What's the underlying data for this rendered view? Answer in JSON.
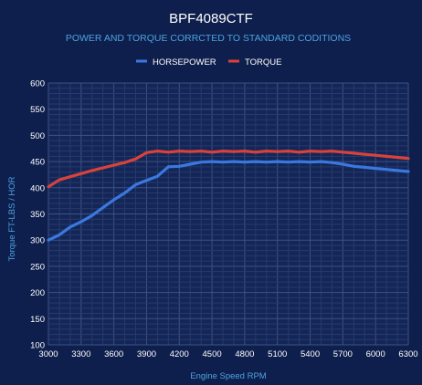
{
  "colors": {
    "background": "#0f1f4d",
    "plot_background": "#132657",
    "grid_major": "#3d5183",
    "grid_minor": "#263a6b",
    "title": "#ffffff",
    "subtitle": "#4aa3df",
    "axis_label": "#4aa3df",
    "tick_label": "#ffffff",
    "horsepower": "#3a78e0",
    "torque": "#d9423a"
  },
  "chart_data": {
    "type": "line",
    "title": "BPF4089CTF",
    "subtitle": "POWER AND TORQUE CORRCTED TO STANDARD CODITIONS",
    "xlabel": "Engine Speed RPM",
    "ylabel": "Torque FT-LBS / HOR",
    "legend_position": "top-center",
    "grid": true,
    "xlim": [
      3000,
      6300
    ],
    "ylim": [
      100,
      600
    ],
    "x_ticks": [
      3000,
      3300,
      3600,
      3900,
      4200,
      4500,
      4800,
      5100,
      5400,
      5700,
      6000,
      6300
    ],
    "y_ticks": [
      100,
      150,
      200,
      250,
      300,
      350,
      400,
      450,
      500,
      550,
      600
    ],
    "x_tick_labels": [
      "3000",
      "3300",
      "3600",
      "3900",
      "4200",
      "4500",
      "4800",
      "5100",
      "5400",
      "5700",
      "6000",
      "6300"
    ],
    "y_tick_labels": [
      "100",
      "150",
      "200",
      "250",
      "300",
      "350",
      "400",
      "450",
      "500",
      "550",
      "600"
    ],
    "series": [
      {
        "name": "HORSEPOWER",
        "color": "#3a78e0",
        "x": [
          3000,
          3100,
          3200,
          3300,
          3400,
          3500,
          3600,
          3700,
          3800,
          3900,
          4000,
          4100,
          4200,
          4300,
          4400,
          4500,
          4600,
          4700,
          4800,
          4900,
          5000,
          5100,
          5200,
          5300,
          5400,
          5500,
          5600,
          5700,
          5800,
          5900,
          6000,
          6100,
          6200,
          6300
        ],
        "y": [
          300,
          310,
          325,
          335,
          347,
          362,
          377,
          390,
          406,
          414,
          422,
          440,
          441,
          445,
          449,
          450,
          449,
          450,
          449,
          450,
          449,
          450,
          449,
          450,
          449,
          450,
          448,
          445,
          441,
          439,
          437,
          435,
          433,
          431
        ]
      },
      {
        "name": "TORQUE",
        "color": "#d9423a",
        "x": [
          3000,
          3100,
          3200,
          3300,
          3400,
          3500,
          3600,
          3700,
          3800,
          3900,
          4000,
          4100,
          4200,
          4300,
          4400,
          4500,
          4600,
          4700,
          4800,
          4900,
          5000,
          5100,
          5200,
          5300,
          5400,
          5500,
          5600,
          5700,
          5800,
          5900,
          6000,
          6100,
          6200,
          6300
        ],
        "y": [
          402,
          415,
          421,
          427,
          433,
          438,
          443,
          448,
          455,
          467,
          470,
          468,
          470,
          469,
          470,
          468,
          470,
          469,
          470,
          468,
          470,
          469,
          470,
          468,
          470,
          469,
          470,
          468,
          466,
          464,
          462,
          460,
          458,
          456
        ]
      }
    ]
  }
}
